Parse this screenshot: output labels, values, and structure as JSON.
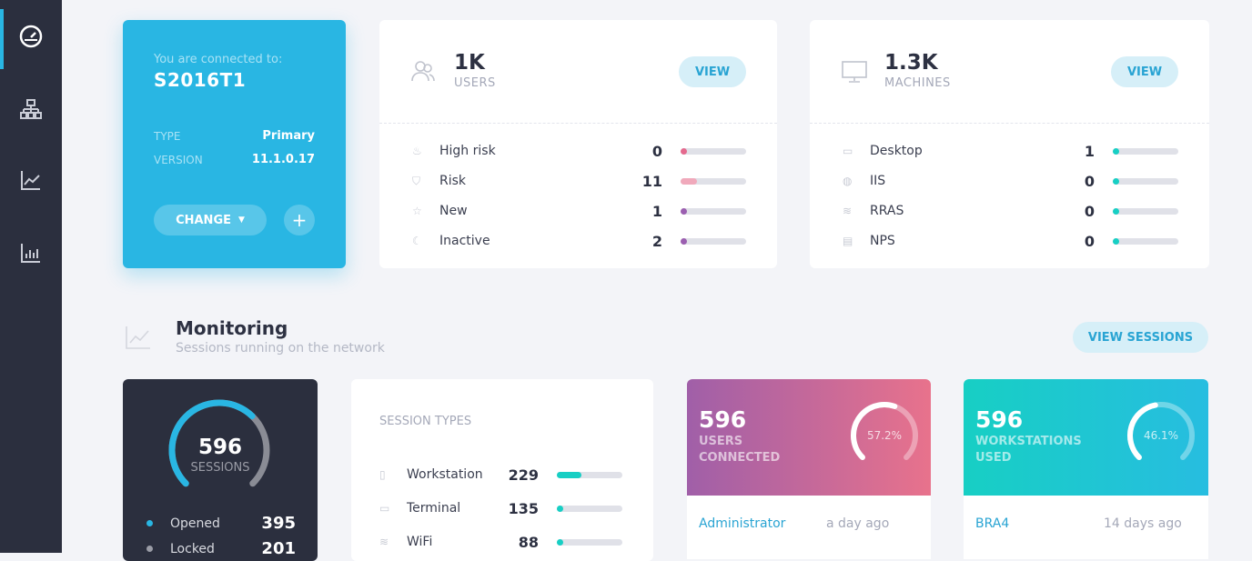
{
  "sidebar": {
    "items": [
      {
        "icon": "dashboard-icon",
        "active": true
      },
      {
        "icon": "sitemap-icon"
      },
      {
        "icon": "line-chart-icon"
      },
      {
        "icon": "bar-chart-icon"
      }
    ],
    "accent": "#29b6e3"
  },
  "connection": {
    "label": "You are connected to:",
    "host": "S2016T1",
    "type_label": "TYPE",
    "type_value": "Primary",
    "version_label": "VERSION",
    "version_value": "11.1.0.17",
    "change_label": "CHANGE",
    "add_label": "+",
    "color": "#29b6e3"
  },
  "users": {
    "count": "1K",
    "label": "USERS",
    "view": "VIEW",
    "rows": [
      {
        "icon": "fire-icon",
        "name": "High risk",
        "value": "0",
        "fill": 0.05,
        "color": "#e46a8e"
      },
      {
        "icon": "shield-icon",
        "name": "Risk",
        "value": "11",
        "fill": 0.25,
        "color": "#f0a9bb"
      },
      {
        "icon": "star-icon",
        "name": "New",
        "value": "1",
        "fill": 0.05,
        "color": "#9b5fb0"
      },
      {
        "icon": "sleep-icon",
        "name": "Inactive",
        "value": "2",
        "fill": 0.06,
        "color": "#9b5fb0"
      }
    ]
  },
  "machines": {
    "count": "1.3K",
    "label": "MACHINES",
    "view": "VIEW",
    "rows": [
      {
        "icon": "desktop-icon",
        "name": "Desktop",
        "value": "1",
        "fill": 0.05,
        "color": "#17cfc4"
      },
      {
        "icon": "globe-icon",
        "name": "IIS",
        "value": "0",
        "fill": 0.05,
        "color": "#17cfc4"
      },
      {
        "icon": "wifi-icon",
        "name": "RRAS",
        "value": "0",
        "fill": 0.05,
        "color": "#17cfc4"
      },
      {
        "icon": "server-icon",
        "name": "NPS",
        "value": "0",
        "fill": 0.05,
        "color": "#17cfc4"
      }
    ]
  },
  "monitoring": {
    "title": "Monitoring",
    "subtitle": "Sessions running on the network",
    "view_sessions": "VIEW SESSIONS"
  },
  "sessions": {
    "total": "596",
    "label": "SESSIONS",
    "opened_fraction": 0.663,
    "legend": [
      {
        "name": "Opened",
        "value": "395",
        "color": "#29b6e3"
      },
      {
        "name": "Locked",
        "value": "201",
        "color": "#9a9ca6"
      }
    ]
  },
  "session_types": {
    "title": "SESSION TYPES",
    "rows": [
      {
        "icon": "workstation-icon",
        "name": "Workstation",
        "value": "229",
        "fill": 0.38,
        "color": "#17cfc4"
      },
      {
        "icon": "terminal-icon",
        "name": "Terminal",
        "value": "135",
        "fill": 0.05,
        "color": "#17cfc4"
      },
      {
        "icon": "wifi-icon",
        "name": "WiFi",
        "value": "88",
        "fill": 0.05,
        "color": "#17cfc4"
      }
    ]
  },
  "users_connected": {
    "value": "596",
    "label": "USERS CONNECTED",
    "percent": "57.2%",
    "fraction": 0.572,
    "colors": [
      "#a05fa8",
      "#e8728c"
    ],
    "recent": {
      "name": "Administrator",
      "time": "a day ago"
    }
  },
  "workstations_used": {
    "value": "596",
    "label": "WORKSTATIONS USED",
    "percent": "46.1%",
    "fraction": 0.461,
    "colors": [
      "#17cfc4",
      "#27bde0"
    ],
    "recent": {
      "name": "BRA4",
      "time": "14 days ago"
    }
  }
}
